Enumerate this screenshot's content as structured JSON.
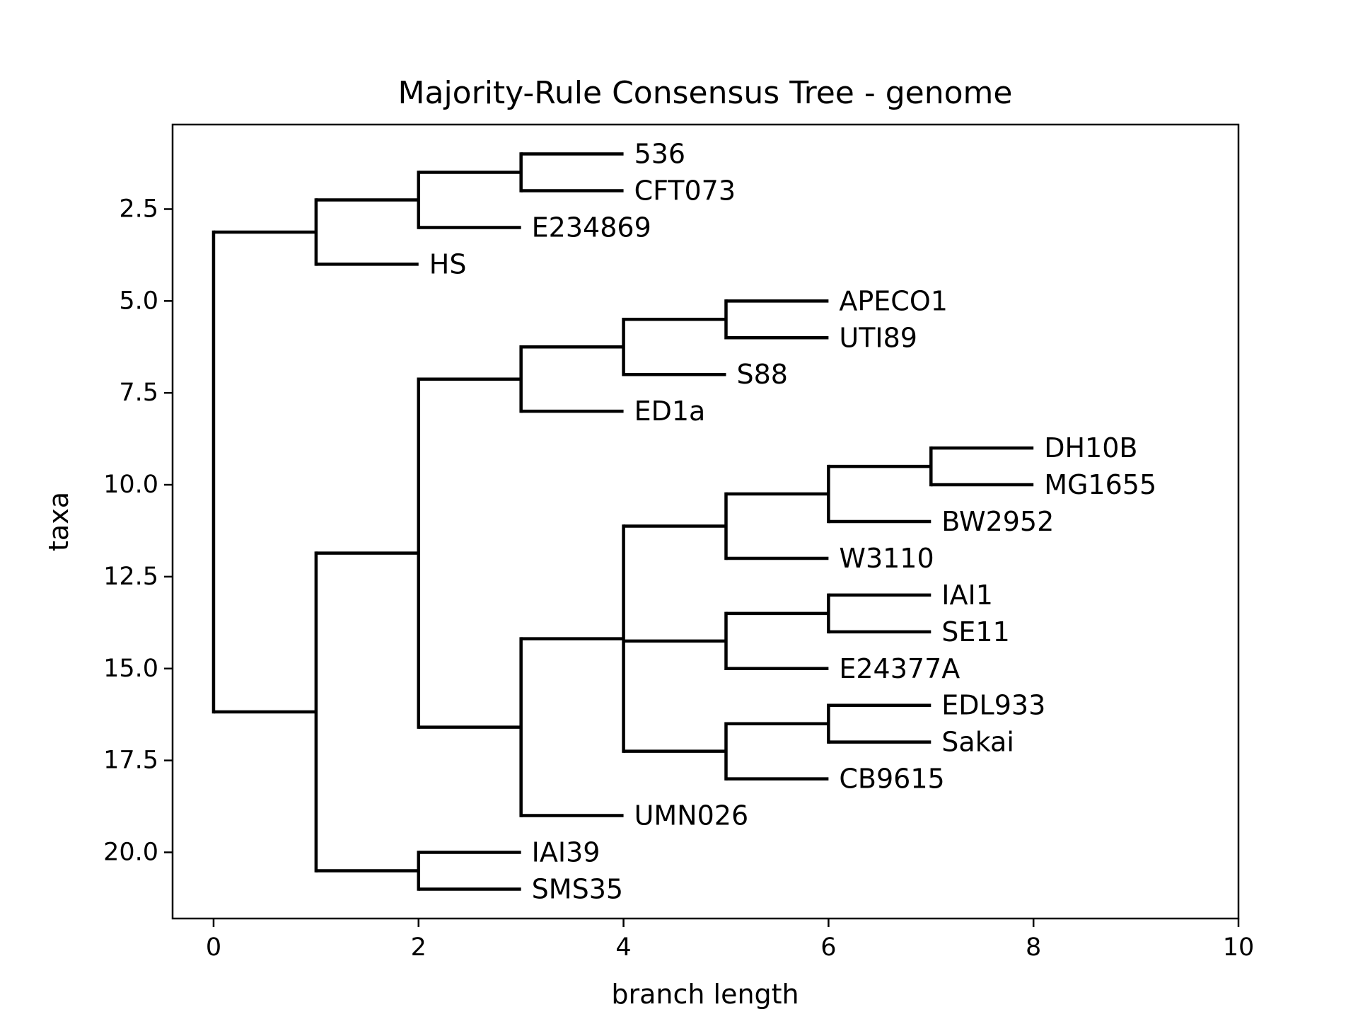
{
  "chart_data": {
    "type": "tree",
    "title": "Majority-Rule Consensus Tree - genome",
    "xlabel": "branch length",
    "ylabel": "taxa",
    "xlim": [
      -0.4,
      10
    ],
    "ylim": [
      21.8,
      0.2
    ],
    "y_inverted": true,
    "grid": false,
    "x_ticks": [
      0,
      2,
      4,
      6,
      8,
      10
    ],
    "x_tick_labels": [
      "0",
      "2",
      "4",
      "6",
      "8",
      "10"
    ],
    "y_ticks": [
      2.5,
      5.0,
      7.5,
      10.0,
      12.5,
      15.0,
      17.5,
      20.0
    ],
    "y_tick_labels": [
      "2.5",
      "5.0",
      "7.5",
      "10.0",
      "12.5",
      "15.0",
      "17.5",
      "20.0"
    ],
    "colors": {
      "lines": "#000000",
      "frame": "#000000",
      "background": "#ffffff"
    },
    "tree": {
      "children": [
        {
          "children": [
            {
              "children": [
                {
                  "children": [
                    {
                      "name": "536"
                    },
                    {
                      "name": "CFT073"
                    }
                  ]
                },
                {
                  "name": "E234869"
                }
              ]
            },
            {
              "name": "HS"
            }
          ]
        },
        {
          "children": [
            {
              "children": [
                {
                  "children": [
                    {
                      "children": [
                        {
                          "children": [
                            {
                              "name": "APECO1"
                            },
                            {
                              "name": "UTI89"
                            }
                          ]
                        },
                        {
                          "name": "S88"
                        }
                      ]
                    },
                    {
                      "name": "ED1a"
                    }
                  ]
                },
                {
                  "children": [
                    {
                      "children": [
                        {
                          "children": [
                            {
                              "children": [
                                {
                                  "children": [
                                    {
                                      "name": "DH10B"
                                    },
                                    {
                                      "name": "MG1655"
                                    }
                                  ]
                                },
                                {
                                  "name": "BW2952"
                                }
                              ]
                            },
                            {
                              "name": "W3110"
                            }
                          ]
                        },
                        {
                          "children": [
                            {
                              "children": [
                                {
                                  "name": "IAI1"
                                },
                                {
                                  "name": "SE11"
                                }
                              ]
                            },
                            {
                              "name": "E24377A"
                            }
                          ]
                        },
                        {
                          "children": [
                            {
                              "children": [
                                {
                                  "name": "EDL933"
                                },
                                {
                                  "name": "Sakai"
                                }
                              ]
                            },
                            {
                              "name": "CB9615"
                            }
                          ]
                        }
                      ]
                    },
                    {
                      "name": "UMN026"
                    }
                  ]
                }
              ]
            },
            {
              "children": [
                {
                  "name": "IAI39"
                },
                {
                  "name": "SMS35"
                }
              ]
            }
          ]
        }
      ]
    }
  }
}
